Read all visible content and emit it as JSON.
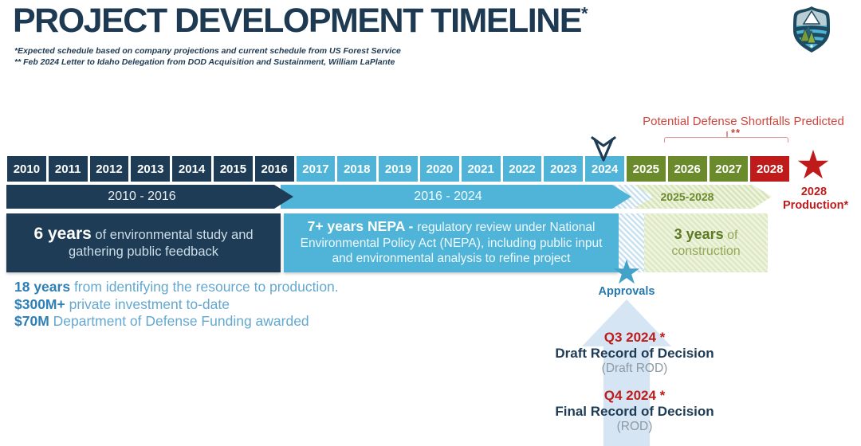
{
  "header": {
    "title": "PROJECT DEVELOPMENT TIMELINE",
    "title_note": "*",
    "footnote1": "*Expected schedule based on company projections and current schedule from US Forest Service",
    "footnote2": "** Feb 2024 Letter to Idaho Delegation from DOD Acquisition and Sustainment, William LaPlante"
  },
  "shortfalls": {
    "label": "Potential Defense Shortfalls Predicted",
    "marker": "**"
  },
  "timeline": {
    "years": [
      {
        "label": "2010",
        "phase": "study"
      },
      {
        "label": "2011",
        "phase": "study"
      },
      {
        "label": "2012",
        "phase": "study"
      },
      {
        "label": "2013",
        "phase": "study"
      },
      {
        "label": "2014",
        "phase": "study"
      },
      {
        "label": "2015",
        "phase": "study"
      },
      {
        "label": "2016",
        "phase": "study"
      },
      {
        "label": "2017",
        "phase": "nepa"
      },
      {
        "label": "2018",
        "phase": "nepa"
      },
      {
        "label": "2019",
        "phase": "nepa"
      },
      {
        "label": "2020",
        "phase": "nepa"
      },
      {
        "label": "2021",
        "phase": "nepa"
      },
      {
        "label": "2022",
        "phase": "nepa"
      },
      {
        "label": "2023",
        "phase": "nepa"
      },
      {
        "label": "2024",
        "phase": "nepa"
      },
      {
        "label": "2025",
        "phase": "construction"
      },
      {
        "label": "2026",
        "phase": "construction"
      },
      {
        "label": "2027",
        "phase": "construction"
      },
      {
        "label": "2028",
        "phase": "production"
      }
    ],
    "bars": [
      {
        "label": "2010 - 2016"
      },
      {
        "label": "2016 - 2024"
      },
      {
        "label": "2025-2028"
      }
    ],
    "blocks": [
      {
        "bold": "6 years",
        "rest": " of environmental study and gathering public feedback"
      },
      {
        "bold": "7+ years NEPA - ",
        "rest": "regulatory review under National Environmental Policy Act (NEPA), including public input and environmental analysis to refine project"
      },
      {
        "bold": "3 years",
        "rest": " of construction"
      }
    ]
  },
  "production": {
    "star": "★",
    "line1": "2028",
    "line2": "Production*"
  },
  "approvals": {
    "star": "★",
    "label": "Approvals"
  },
  "stats": [
    {
      "bold": "18 years",
      "rest": " from identifying the resource to production."
    },
    {
      "bold": "$300M+",
      "rest": " private investment to-date"
    },
    {
      "bold": "$70M",
      "rest": " Department of Defense Funding awarded"
    }
  ],
  "milestones": [
    {
      "date": "Q3 2024 *",
      "title": "Draft Record of Decision",
      "sub": "(Draft ROD)"
    },
    {
      "date": "Q4 2024 *",
      "title": "Final Record of Decision",
      "sub": "(ROD)"
    }
  ],
  "colors": {
    "navy": "#1e3c55",
    "blue": "#4fb4d8",
    "olive": "#6b8a2c",
    "red": "#bf1b1b",
    "annotation_red": "#cf463e"
  }
}
